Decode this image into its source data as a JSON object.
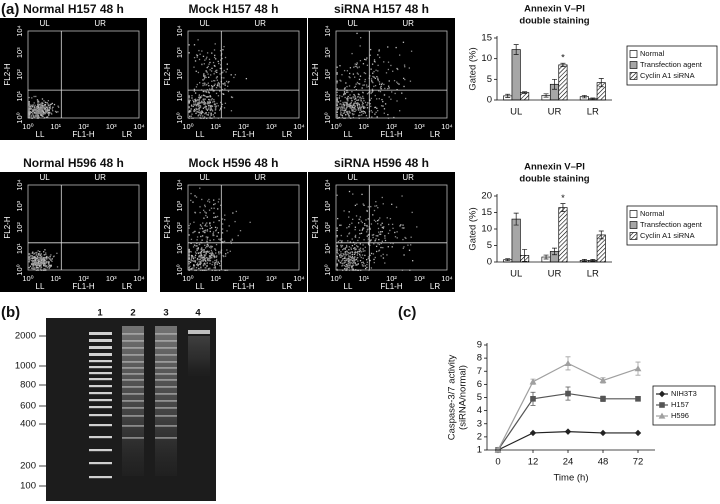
{
  "panel_labels": [
    "(a)",
    "(b)",
    "(c)"
  ],
  "flow_cytometry": {
    "panels": [
      "Normal H157 48 h",
      "Mock H157 48 h",
      "siRNA H157 48 h",
      "Normal H596 48 h",
      "Mock H596 48 h",
      "siRNA H596 48 h"
    ],
    "quadrants": [
      "UL",
      "UR",
      "LL",
      "LR"
    ],
    "x_label": "FL1-H",
    "y_label": "FL2-H",
    "ticks": [
      "10⁰",
      "10¹",
      "10²",
      "10³",
      "10⁴"
    ]
  },
  "gel": {
    "lane_labels": [
      "1",
      "2",
      "3",
      "4"
    ],
    "size_labels": [
      "2000",
      "1000",
      "800",
      "600",
      "400",
      "200",
      "100"
    ]
  },
  "chart_data": [
    {
      "type": "bar",
      "title": [
        "Annexin V–PI",
        "double staining"
      ],
      "ylabel": "Gated (%)",
      "categories": [
        "UL",
        "UR",
        "LR"
      ],
      "series": [
        {
          "name": "Normal",
          "color": "#ffffff",
          "values": [
            1,
            1.1,
            0.8
          ],
          "errors": [
            0.4,
            0.4,
            0.3
          ]
        },
        {
          "name": "Transfection agent",
          "color": "#a6a6a6",
          "values": [
            12.2,
            3.8,
            0.3
          ],
          "errors": [
            1.2,
            1.2,
            0.2
          ]
        },
        {
          "name": "Cyclin A1 siRNA",
          "color": "#ffffff",
          "hatch": true,
          "values": [
            1.8,
            8.5,
            4.2
          ],
          "errors": [
            0.2,
            0.4,
            1.0
          ]
        }
      ],
      "ylim": [
        0,
        15
      ],
      "yticks": [
        0,
        5,
        10,
        15
      ],
      "annotation": "*",
      "legend": "right"
    },
    {
      "type": "bar",
      "title": [
        "Annexin V–PI",
        "double staining"
      ],
      "ylabel": "Gated (%)",
      "categories": [
        "UL",
        "UR",
        "LR"
      ],
      "series": [
        {
          "name": "Normal",
          "color": "#ffffff",
          "values": [
            0.7,
            1.5,
            0.5
          ],
          "errors": [
            0.3,
            0.6,
            0.3
          ]
        },
        {
          "name": "Transfection agent",
          "color": "#a6a6a6",
          "values": [
            13,
            3.2,
            0.5
          ],
          "errors": [
            1.8,
            1,
            0.3
          ]
        },
        {
          "name": "Cyclin A1 siRNA",
          "color": "#ffffff",
          "hatch": true,
          "values": [
            2,
            16.5,
            8.2
          ],
          "errors": [
            1.8,
            1.2,
            1.2
          ]
        }
      ],
      "ylim": [
        0,
        20
      ],
      "yticks": [
        0,
        5,
        10,
        15,
        20
      ],
      "annotation": "*",
      "legend": "right"
    },
    {
      "type": "line",
      "ylabel": [
        "Caspase-3/7 activity",
        "(siRNA/normal)"
      ],
      "xlabel": "Time (h)",
      "categories": [
        "0",
        "12",
        "24",
        "48",
        "72"
      ],
      "series": [
        {
          "name": "NIH3T3",
          "color": "#222222",
          "marker": "diamond",
          "values": [
            1,
            2.3,
            2.4,
            2.3,
            2.3
          ]
        },
        {
          "name": "H157",
          "color": "#555555",
          "marker": "square",
          "values": [
            1,
            4.9,
            5.3,
            4.9,
            4.9
          ],
          "errors": [
            0.1,
            0.5,
            0.5,
            0.2,
            0.1
          ]
        },
        {
          "name": "H596",
          "color": "#a0a0a0",
          "marker": "triangle",
          "values": [
            1,
            6.2,
            7.6,
            6.3,
            7.2
          ],
          "errors": [
            0.1,
            0.2,
            0.5,
            0.2,
            0.5
          ]
        }
      ],
      "ylim": [
        1,
        9
      ],
      "yticks": [
        1,
        2,
        3,
        4,
        5,
        6,
        7,
        8,
        9
      ],
      "legend": "right"
    }
  ]
}
